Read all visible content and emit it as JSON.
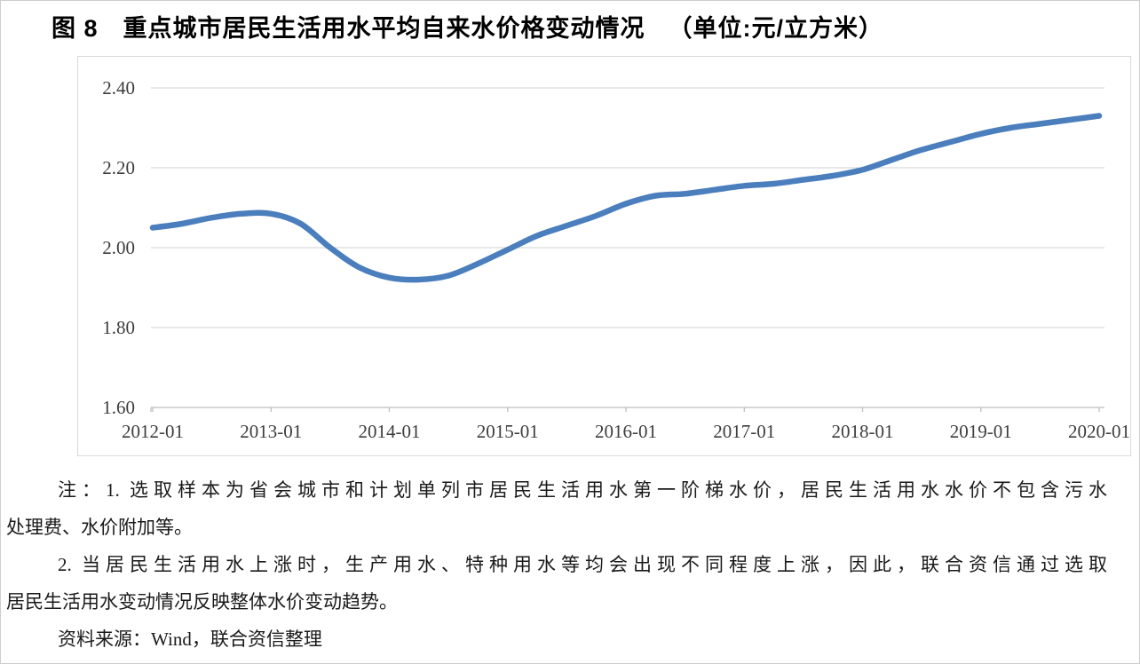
{
  "header": {
    "title": "图 8　重点城市居民生活用水平均自来水价格变动情况",
    "unit_label": "（单位:元/立方米）"
  },
  "chart_data": {
    "type": "line",
    "title": "重点城市居民生活用水平均自来水价格变动情况",
    "unit": "元/立方米",
    "x": [
      "2012-01",
      "2012-04",
      "2012-07",
      "2012-10",
      "2013-01",
      "2013-04",
      "2013-07",
      "2013-10",
      "2014-01",
      "2014-04",
      "2014-07",
      "2014-10",
      "2015-01",
      "2015-04",
      "2015-07",
      "2015-10",
      "2016-01",
      "2016-04",
      "2016-07",
      "2016-10",
      "2017-01",
      "2017-04",
      "2017-07",
      "2017-10",
      "2018-01",
      "2018-04",
      "2018-07",
      "2018-10",
      "2019-01",
      "2019-04",
      "2019-07",
      "2019-10",
      "2020-01"
    ],
    "values": [
      2.05,
      2.06,
      2.075,
      2.085,
      2.085,
      2.06,
      2.0,
      1.95,
      1.925,
      1.92,
      1.93,
      1.96,
      1.995,
      2.03,
      2.055,
      2.08,
      2.11,
      2.13,
      2.135,
      2.145,
      2.155,
      2.16,
      2.17,
      2.18,
      2.195,
      2.22,
      2.245,
      2.265,
      2.285,
      2.3,
      2.31,
      2.32,
      2.33
    ],
    "x_tick_labels": [
      "2012-01",
      "2013-01",
      "2014-01",
      "2015-01",
      "2016-01",
      "2017-01",
      "2018-01",
      "2019-01",
      "2020-01"
    ],
    "y_ticks": [
      1.6,
      1.8,
      2.0,
      2.2,
      2.4
    ],
    "y_tick_labels": [
      "1.60",
      "1.80",
      "2.00",
      "2.20",
      "2.40"
    ],
    "ylim": [
      1.6,
      2.4
    ],
    "grid": true,
    "legend": false,
    "smooth": true,
    "line_color": "#4a7ebd",
    "gridline_color": "#d9d9d9",
    "axis_line_color": "#bfbfbf",
    "tick_label_color": "#3d3d3d"
  },
  "notes": {
    "lines": [
      {
        "text": "注：1. 选取样本为省会城市和计划单列市居民生活用水第一阶梯水价，居民生活用水水价不包含污水",
        "indent": true,
        "justify": true
      },
      {
        "text": "处理费、水价附加等。",
        "indent": false,
        "justify": false
      },
      {
        "text": "2. 当居民生活用水上涨时，生产用水、特种用水等均会出现不同程度上涨，因此，联合资信通过选取",
        "indent": true,
        "justify": true
      },
      {
        "text": "居民生活用水变动情况反映整体水价变动趋势。",
        "indent": false,
        "justify": false
      },
      {
        "text": "资料来源：Wind，联合资信整理",
        "indent": true,
        "justify": false
      }
    ]
  }
}
